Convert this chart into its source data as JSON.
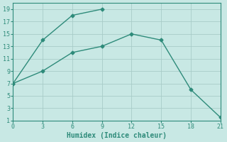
{
  "line1_x": [
    0,
    3,
    6,
    9
  ],
  "line1_y": [
    7,
    14,
    18,
    19
  ],
  "line2_x": [
    0,
    3,
    6,
    9,
    12,
    15,
    18,
    21
  ],
  "line2_y": [
    7,
    9,
    12,
    13,
    15,
    14,
    6,
    1.5
  ],
  "line_color": "#2e8b7a",
  "bg_color": "#c8e8e4",
  "grid_color": "#a8ccc8",
  "xlabel": "Humidex (Indice chaleur)",
  "xlim": [
    0,
    21
  ],
  "ylim": [
    1,
    20
  ],
  "xticks": [
    0,
    3,
    6,
    9,
    12,
    15,
    18,
    21
  ],
  "yticks": [
    1,
    3,
    5,
    7,
    9,
    11,
    13,
    15,
    17,
    19
  ],
  "marker": "D",
  "marker_size": 2.5,
  "line_width": 1.0
}
